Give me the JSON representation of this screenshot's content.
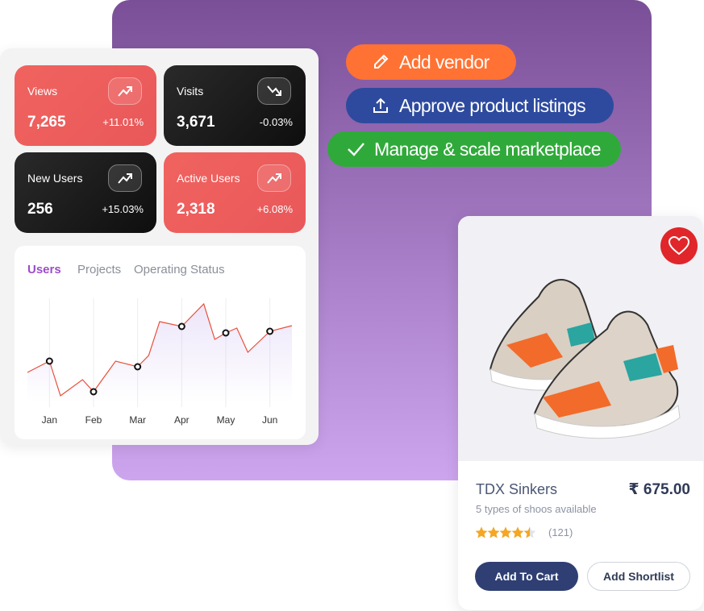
{
  "stats": [
    {
      "label": "Views",
      "value": "7,265",
      "change": "+11.01%"
    },
    {
      "label": "Visits",
      "value": "3,671",
      "change": "-0.03%"
    },
    {
      "label": "New Users",
      "value": "256",
      "change": "+15.03%"
    },
    {
      "label": "Active Users",
      "value": "2,318",
      "change": "+6.08%"
    }
  ],
  "actions": [
    "Add vendor",
    "Approve product listings",
    "Manage & scale marketplace"
  ],
  "tabs": [
    "Users",
    "Projects",
    "Operating Status"
  ],
  "chart_data": {
    "type": "line",
    "x": [
      -0.5,
      0,
      0.25,
      0.75,
      1,
      1.5,
      2,
      2.25,
      2.5,
      3,
      3.5,
      3.75,
      4,
      4.25,
      4.5,
      5,
      5.5
    ],
    "series": [
      {
        "color": "#e8503a",
        "values": [
          38,
          52,
          9,
          29,
          14,
          52,
          45,
          59,
          101,
          95,
          123,
          79,
          87,
          93,
          63,
          89,
          96
        ]
      }
    ],
    "xlim": [
      -0.5,
      5.5
    ],
    "ylim": [
      0,
      130
    ],
    "xticks": [
      {
        "value": 0,
        "label": "Jan"
      },
      {
        "value": 1,
        "label": "Feb"
      },
      {
        "value": 2,
        "label": "Mar"
      },
      {
        "value": 3,
        "label": "Apr"
      },
      {
        "value": 4,
        "label": "May"
      },
      {
        "value": 5,
        "label": "Jun"
      }
    ]
  },
  "product": {
    "name": "TDX Sinkers",
    "price": "₹ 675.00",
    "subtitle": "5 types of shoos available",
    "rating": 4.5,
    "reviews": "(121)",
    "buttons": [
      "Add To Cart",
      "Add Shortlist"
    ]
  }
}
